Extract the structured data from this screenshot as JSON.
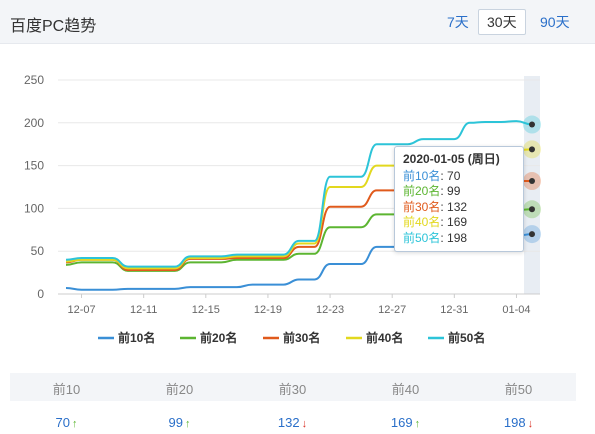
{
  "header": {
    "title": "百度PC趋势",
    "ranges": [
      {
        "label": "7天",
        "active": false
      },
      {
        "label": "30天",
        "active": true
      },
      {
        "label": "90天",
        "active": false
      }
    ]
  },
  "colors": {
    "前10名": "#3a8fd6",
    "前20名": "#5cb531",
    "前30名": "#e05a1c",
    "前40名": "#e2d81e",
    "前50名": "#2cc4d8",
    "arrow_up": "#5cb531",
    "arrow_down": "#d93025"
  },
  "chart_data": {
    "type": "line",
    "ylim": [
      0,
      250
    ],
    "yticks": [
      "0",
      "50",
      "100",
      "150",
      "200",
      "250"
    ],
    "xtick_labels": [
      "12-07",
      "12-11",
      "12-15",
      "12-19",
      "12-23",
      "12-27",
      "12-31",
      "01-04"
    ],
    "x": [
      "12-06",
      "12-07",
      "12-08",
      "12-09",
      "12-10",
      "12-11",
      "12-12",
      "12-13",
      "12-14",
      "12-15",
      "12-16",
      "12-17",
      "12-18",
      "12-19",
      "12-20",
      "12-21",
      "12-22",
      "12-23",
      "12-24",
      "12-25",
      "12-26",
      "12-27",
      "12-28",
      "12-29",
      "12-30",
      "12-31",
      "01-01",
      "01-02",
      "01-03",
      "01-04",
      "01-05"
    ],
    "series": [
      {
        "name": "前10名",
        "values": [
          7,
          5,
          5,
          5,
          6,
          6,
          6,
          6,
          8,
          8,
          8,
          8,
          11,
          11,
          11,
          17,
          17,
          35,
          35,
          35,
          55,
          55,
          55,
          56,
          56,
          56,
          65,
          66,
          66,
          68,
          70
        ]
      },
      {
        "name": "前20名",
        "values": [
          34,
          37,
          37,
          37,
          27,
          27,
          27,
          27,
          37,
          37,
          37,
          40,
          40,
          40,
          40,
          47,
          47,
          78,
          78,
          78,
          93,
          93,
          93,
          93,
          94,
          94,
          95,
          97,
          97,
          98,
          99
        ]
      },
      {
        "name": "前30名",
        "values": [
          37,
          40,
          40,
          40,
          28,
          28,
          28,
          28,
          41,
          41,
          41,
          42,
          42,
          42,
          42,
          55,
          55,
          102,
          102,
          102,
          121,
          121,
          121,
          121,
          123,
          123,
          127,
          130,
          130,
          132,
          132
        ]
      },
      {
        "name": "前40名",
        "values": [
          38,
          40,
          40,
          40,
          30,
          30,
          30,
          30,
          42,
          42,
          42,
          44,
          44,
          44,
          44,
          59,
          59,
          125,
          125,
          125,
          150,
          150,
          150,
          150,
          155,
          155,
          163,
          166,
          166,
          168,
          169
        ]
      },
      {
        "name": "前50名",
        "values": [
          40,
          42,
          42,
          42,
          32,
          32,
          32,
          32,
          44,
          44,
          44,
          46,
          46,
          46,
          46,
          62,
          62,
          137,
          137,
          137,
          175,
          175,
          175,
          181,
          181,
          181,
          200,
          201,
          201,
          202,
          198
        ]
      }
    ],
    "legend_position": "bottom",
    "tooltip": {
      "date": "2020-01-05 (周日)",
      "rows": [
        {
          "name": "前10名",
          "value": "70"
        },
        {
          "name": "前20名",
          "value": "99"
        },
        {
          "name": "前30名",
          "value": "132"
        },
        {
          "name": "前40名",
          "value": "169"
        },
        {
          "name": "前50名",
          "value": "198"
        }
      ]
    }
  },
  "stats": {
    "headers": [
      "前10",
      "前20",
      "前30",
      "前40",
      "前50"
    ],
    "values": [
      {
        "value": "70",
        "trend": "up"
      },
      {
        "value": "99",
        "trend": "up"
      },
      {
        "value": "132",
        "trend": "down"
      },
      {
        "value": "169",
        "trend": "up"
      },
      {
        "value": "198",
        "trend": "down"
      }
    ]
  }
}
